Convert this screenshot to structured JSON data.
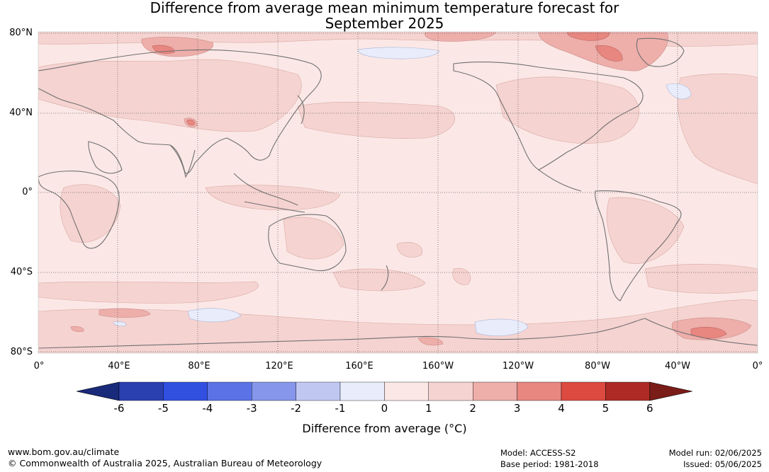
{
  "title_line1": "Difference from average mean minimum temperature forecast for",
  "title_line2": "September 2025",
  "lat_labels": [
    "80°N",
    "40°N",
    "0°",
    "40°S",
    "80°S"
  ],
  "lon_labels": [
    "0°",
    "40°E",
    "80°E",
    "120°E",
    "160°E",
    "160°W",
    "120°W",
    "80°W",
    "40°W",
    "0°"
  ],
  "colorbar": {
    "ticks": [
      "-6",
      "-5",
      "-4",
      "-3",
      "-2",
      "-1",
      "0",
      "1",
      "2",
      "3",
      "4",
      "5",
      "6"
    ],
    "colors": [
      "#1a2a7a",
      "#2a3fb0",
      "#3150e0",
      "#5a72e6",
      "#8696ea",
      "#c0c8f2",
      "#e8ecfb",
      "#fbe8e6",
      "#f5d3d0",
      "#eeaeaa",
      "#e88680",
      "#dc4a40",
      "#ad2b24",
      "#7a1c17"
    ],
    "label": "Difference from average (°C)"
  },
  "footer": {
    "website": "www.bom.gov.au/climate",
    "copyright": "© Commonwealth of Australia 2025, Australian Bureau of Meteorology",
    "model": "Model: ACCESS-S2",
    "base_period": "Base period: 1981-2018",
    "model_run": "Model run: 02/06/2025",
    "issued": "Issued: 05/06/2025"
  }
}
